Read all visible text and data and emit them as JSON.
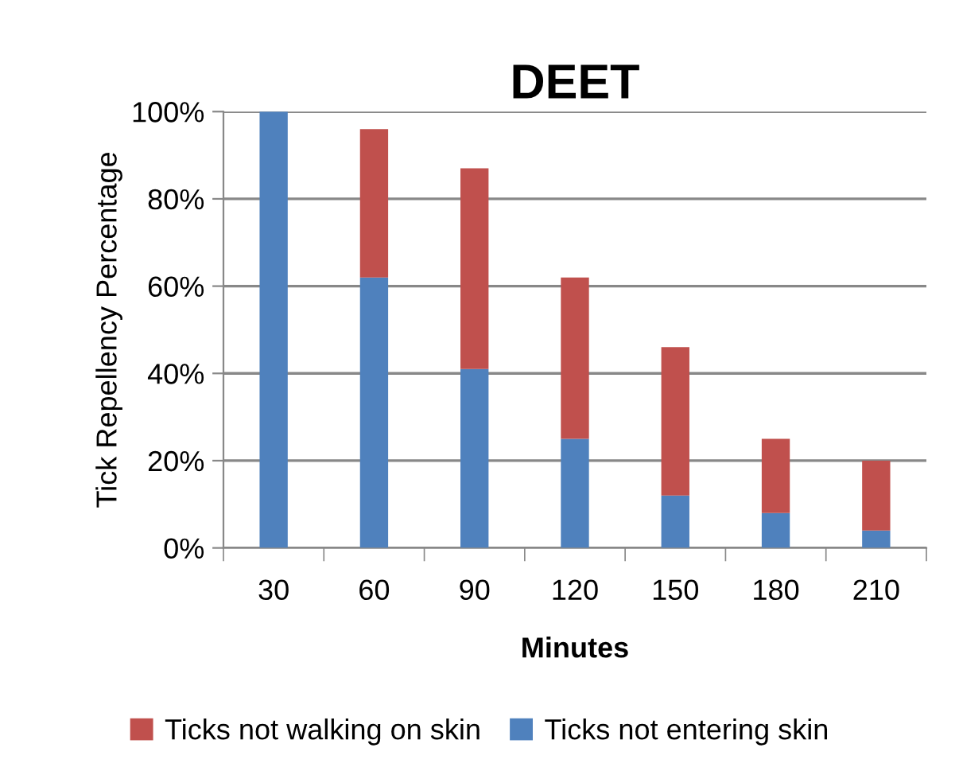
{
  "chart_data": {
    "type": "bar",
    "title": "DEET",
    "xlabel": "Minutes",
    "ylabel": "Tick Repellency Percentage",
    "categories": [
      "30",
      "60",
      "90",
      "120",
      "150",
      "180",
      "210"
    ],
    "stacked": true,
    "series": [
      {
        "name": "Ticks not entering skin",
        "color": "#4f81bd",
        "values": [
          100,
          62,
          41,
          25,
          12,
          8,
          4
        ]
      },
      {
        "name": "Ticks not walking on skin",
        "color": "#c0504d",
        "values": [
          0,
          34,
          46,
          37,
          34,
          17,
          16
        ]
      }
    ],
    "ylim": [
      0,
      100
    ],
    "yticks": [
      {
        "value": 0,
        "label": "0%"
      },
      {
        "value": 20,
        "label": "20%"
      },
      {
        "value": 40,
        "label": "40%"
      },
      {
        "value": 60,
        "label": "60%"
      },
      {
        "value": 80,
        "label": "80%"
      },
      {
        "value": 100,
        "label": "100%"
      }
    ],
    "grid": "y",
    "legend": "bottom"
  }
}
